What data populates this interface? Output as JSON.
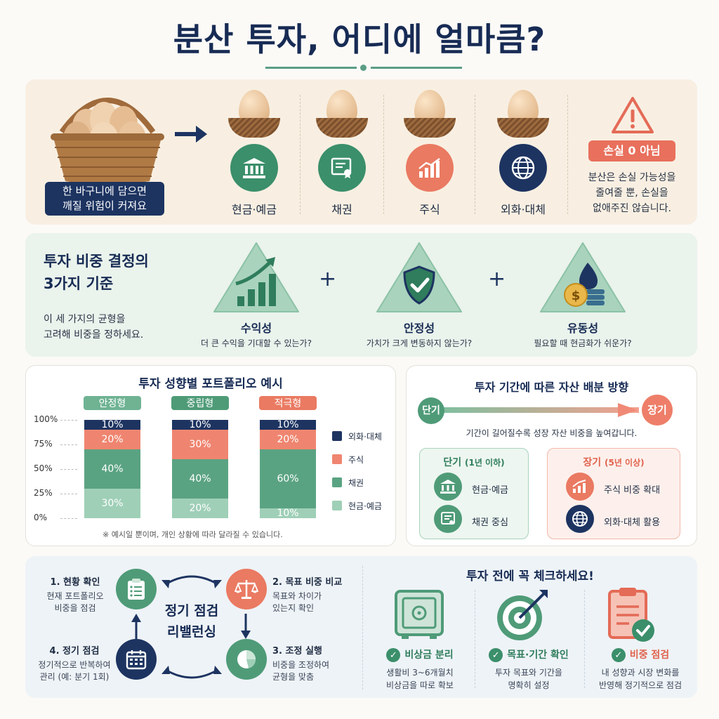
{
  "title": "분산 투자, 어디에 얼마큼?",
  "basket": {
    "caption_line1": "한 바구니에 담으면",
    "caption_line2": "깨질 위험이 커져요"
  },
  "assets": [
    {
      "label": "현금·예금",
      "icon": "bank-icon",
      "color": "#3b8f6b"
    },
    {
      "label": "채권",
      "icon": "certificate-icon",
      "color": "#3b8f6b"
    },
    {
      "label": "주식",
      "icon": "rising-chart-icon",
      "color": "#ea7a62"
    },
    {
      "label": "외화·대체",
      "icon": "globe-icon",
      "color": "#1d3461"
    }
  ],
  "warning": {
    "badge": "손실 0 아님",
    "line1": "분산은 손실 가능성을",
    "line2": "줄여줄 뿐, 손실을",
    "line3": "없애주진 않습니다."
  },
  "criteria": {
    "heading_line1": "투자 비중 결정의",
    "heading_line2": "3가지 기준",
    "desc_line1": "이 세 가지의 균형을",
    "desc_line2": "고려해 비중을 정하세요.",
    "plus": "+",
    "items": [
      {
        "title": "수익성",
        "desc": "더 큰 수익을 기대할 수 있는가?",
        "icon": "growth-bars-icon"
      },
      {
        "title": "안정성",
        "desc": "가치가 크게 변동하지 않는가?",
        "icon": "shield-check-icon"
      },
      {
        "title": "유동성",
        "desc": "필요할 때 현금화가 쉬운가?",
        "icon": "coins-icon"
      }
    ]
  },
  "portfolio": {
    "title": "투자 성향별 포트폴리오 예시",
    "y_ticks": [
      "100%",
      "75%",
      "50%",
      "25%",
      "0%"
    ],
    "note": "※ 예시일 뿐이며, 개인 상황에 따라 달라질 수 있습니다.",
    "legend": [
      "외화·대체",
      "주식",
      "채권",
      "현금·예금"
    ]
  },
  "chart_data": {
    "type": "bar",
    "stacked": true,
    "categories": [
      "안정형",
      "중립형",
      "적극형"
    ],
    "series": [
      {
        "name": "현금·예금",
        "values": [
          30,
          20,
          10
        ],
        "color": "#9fcfb7"
      },
      {
        "name": "채권",
        "values": [
          40,
          40,
          60
        ],
        "color": "#5aa382"
      },
      {
        "name": "주식",
        "values": [
          20,
          30,
          20
        ],
        "color": "#ef8570"
      },
      {
        "name": "외화·대체",
        "values": [
          10,
          10,
          10
        ],
        "color": "#1d3461"
      }
    ],
    "ylim": [
      0,
      100
    ],
    "y_ticks": [
      "100%",
      "75%",
      "50%",
      "25%",
      "0%"
    ],
    "category_colors": [
      "#6fb393",
      "#4f9b78",
      "#ea7a62"
    ]
  },
  "horizon": {
    "title": "투자 기간에 따른 자산 배분 방향",
    "short": "단기",
    "long": "장기",
    "desc": "기간이 길어질수록 성장 자산 비중을 높여갑니다.",
    "short_box": {
      "title": "단기",
      "sub": "(1년 이하)",
      "items": [
        "현금·예금",
        "채권 중심"
      ]
    },
    "long_box": {
      "title": "장기",
      "sub": "(5년 이상)",
      "items": [
        "주식 비중 확대",
        "외화·대체 활용"
      ]
    }
  },
  "rebalance": {
    "center_line1": "정기 점검",
    "center_line2": "리밸런싱",
    "steps": [
      {
        "title": "1. 현황 확인",
        "line1": "현재 포트폴리오",
        "line2": "비중을 점검"
      },
      {
        "title": "2. 목표 비중 비교",
        "line1": "목표와 차이가",
        "line2": "있는지 확인"
      },
      {
        "title": "3. 조정 실행",
        "line1": "비중을 조정하여",
        "line2": "균형을 맞춤"
      },
      {
        "title": "4. 정기 점검",
        "line1": "정기적으로 반복하여",
        "line2": "관리 (예: 분기 1회)"
      }
    ]
  },
  "checklist": {
    "title": "투자 전에 꼭 체크하세요!",
    "items": [
      {
        "title": "비상금 분리",
        "line1": "생활비 3~6개월치",
        "line2": "비상금을 따로 확보",
        "icon": "safe-icon"
      },
      {
        "title": "목표·기간 확인",
        "line1": "투자 목표와 기간을",
        "line2": "명확히 설정",
        "icon": "target-icon"
      },
      {
        "title": "비중 점검",
        "line1": "내 성향과 시장 변화를",
        "line2": "반영해 정기적으로 점검",
        "icon": "clipboard-check-icon"
      }
    ]
  }
}
